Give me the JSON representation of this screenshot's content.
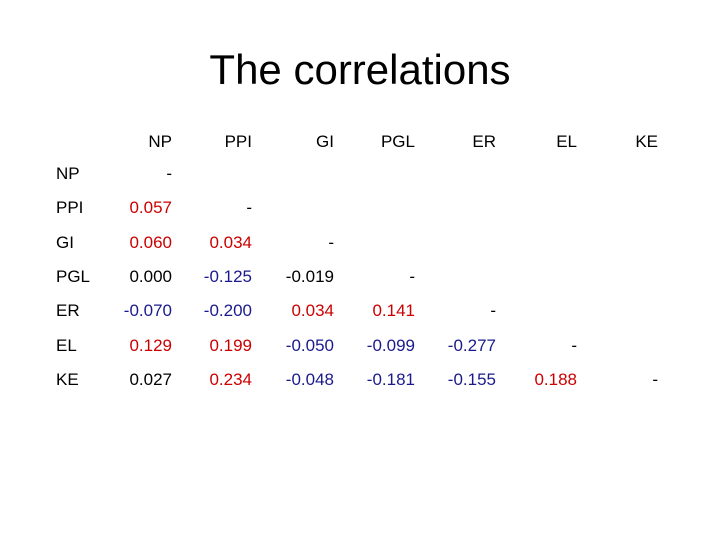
{
  "title": "The correlations",
  "colors": {
    "significant": "#cc0000",
    "negative_significant": "#1a1a8c",
    "plain": "#000000"
  },
  "columns": [
    "NP",
    "PPI",
    "GI",
    "PGL",
    "ER",
    "EL",
    "KE"
  ],
  "rows": [
    {
      "label": "NP",
      "cells": [
        {
          "text": "-",
          "tone": "plain"
        }
      ]
    },
    {
      "label": "PPI",
      "cells": [
        {
          "text": "0.057",
          "tone": "significant"
        },
        {
          "text": "-",
          "tone": "plain"
        }
      ]
    },
    {
      "label": "GI",
      "cells": [
        {
          "text": "0.060",
          "tone": "significant"
        },
        {
          "text": "0.034",
          "tone": "significant"
        },
        {
          "text": "-",
          "tone": "plain"
        }
      ]
    },
    {
      "label": "PGL",
      "cells": [
        {
          "text": "0.000",
          "tone": "plain"
        },
        {
          "text": "-0.125",
          "tone": "negative_significant"
        },
        {
          "text": "-0.019",
          "tone": "plain"
        },
        {
          "text": "-",
          "tone": "plain"
        }
      ]
    },
    {
      "label": "ER",
      "cells": [
        {
          "text": "-0.070",
          "tone": "negative_significant"
        },
        {
          "text": "-0.200",
          "tone": "negative_significant"
        },
        {
          "text": "0.034",
          "tone": "significant"
        },
        {
          "text": "0.141",
          "tone": "significant"
        },
        {
          "text": "-",
          "tone": "plain"
        }
      ]
    },
    {
      "label": "EL",
      "cells": [
        {
          "text": "0.129",
          "tone": "significant"
        },
        {
          "text": "0.199",
          "tone": "significant"
        },
        {
          "text": "-0.050",
          "tone": "negative_significant"
        },
        {
          "text": "-0.099",
          "tone": "negative_significant"
        },
        {
          "text": "-0.277",
          "tone": "negative_significant"
        },
        {
          "text": "-",
          "tone": "plain"
        }
      ]
    },
    {
      "label": "KE",
      "cells": [
        {
          "text": "0.027",
          "tone": "plain"
        },
        {
          "text": "0.234",
          "tone": "significant"
        },
        {
          "text": "-0.048",
          "tone": "negative_significant"
        },
        {
          "text": "-0.181",
          "tone": "negative_significant"
        },
        {
          "text": "-0.155",
          "tone": "negative_significant"
        },
        {
          "text": "0.188",
          "tone": "significant"
        },
        {
          "text": "-",
          "tone": "plain"
        }
      ]
    }
  ]
}
